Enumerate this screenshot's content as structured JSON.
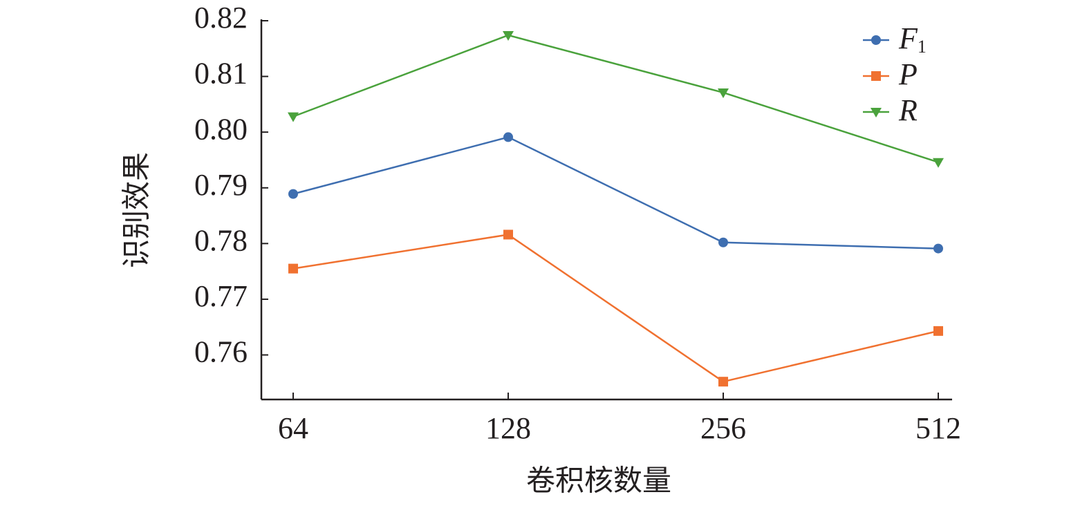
{
  "chart_data": {
    "type": "line",
    "x_label": "卷积核数量",
    "y_label": "识别效果",
    "categories": [
      "64",
      "128",
      "256",
      "512"
    ],
    "series": [
      {
        "name": "F1",
        "color": "#3e6eb0",
        "marker": "circle",
        "values": [
          0.7889,
          0.7991,
          0.7802,
          0.7791
        ]
      },
      {
        "name": "P",
        "color": "#f07130",
        "marker": "square",
        "values": [
          0.7755,
          0.7816,
          0.7552,
          0.7643
        ]
      },
      {
        "name": "R",
        "color": "#4aa23c",
        "marker": "triangle-down",
        "values": [
          0.8028,
          0.8174,
          0.8071,
          0.7946
        ]
      }
    ],
    "ylim": [
      0.752,
      0.82
    ],
    "yticks": [
      0.82,
      0.81,
      {
        "value": 0.8,
        "label": "0.80"
      },
      0.79,
      0.78,
      0.77,
      0.76
    ],
    "grid": false,
    "legend": "upper right"
  }
}
